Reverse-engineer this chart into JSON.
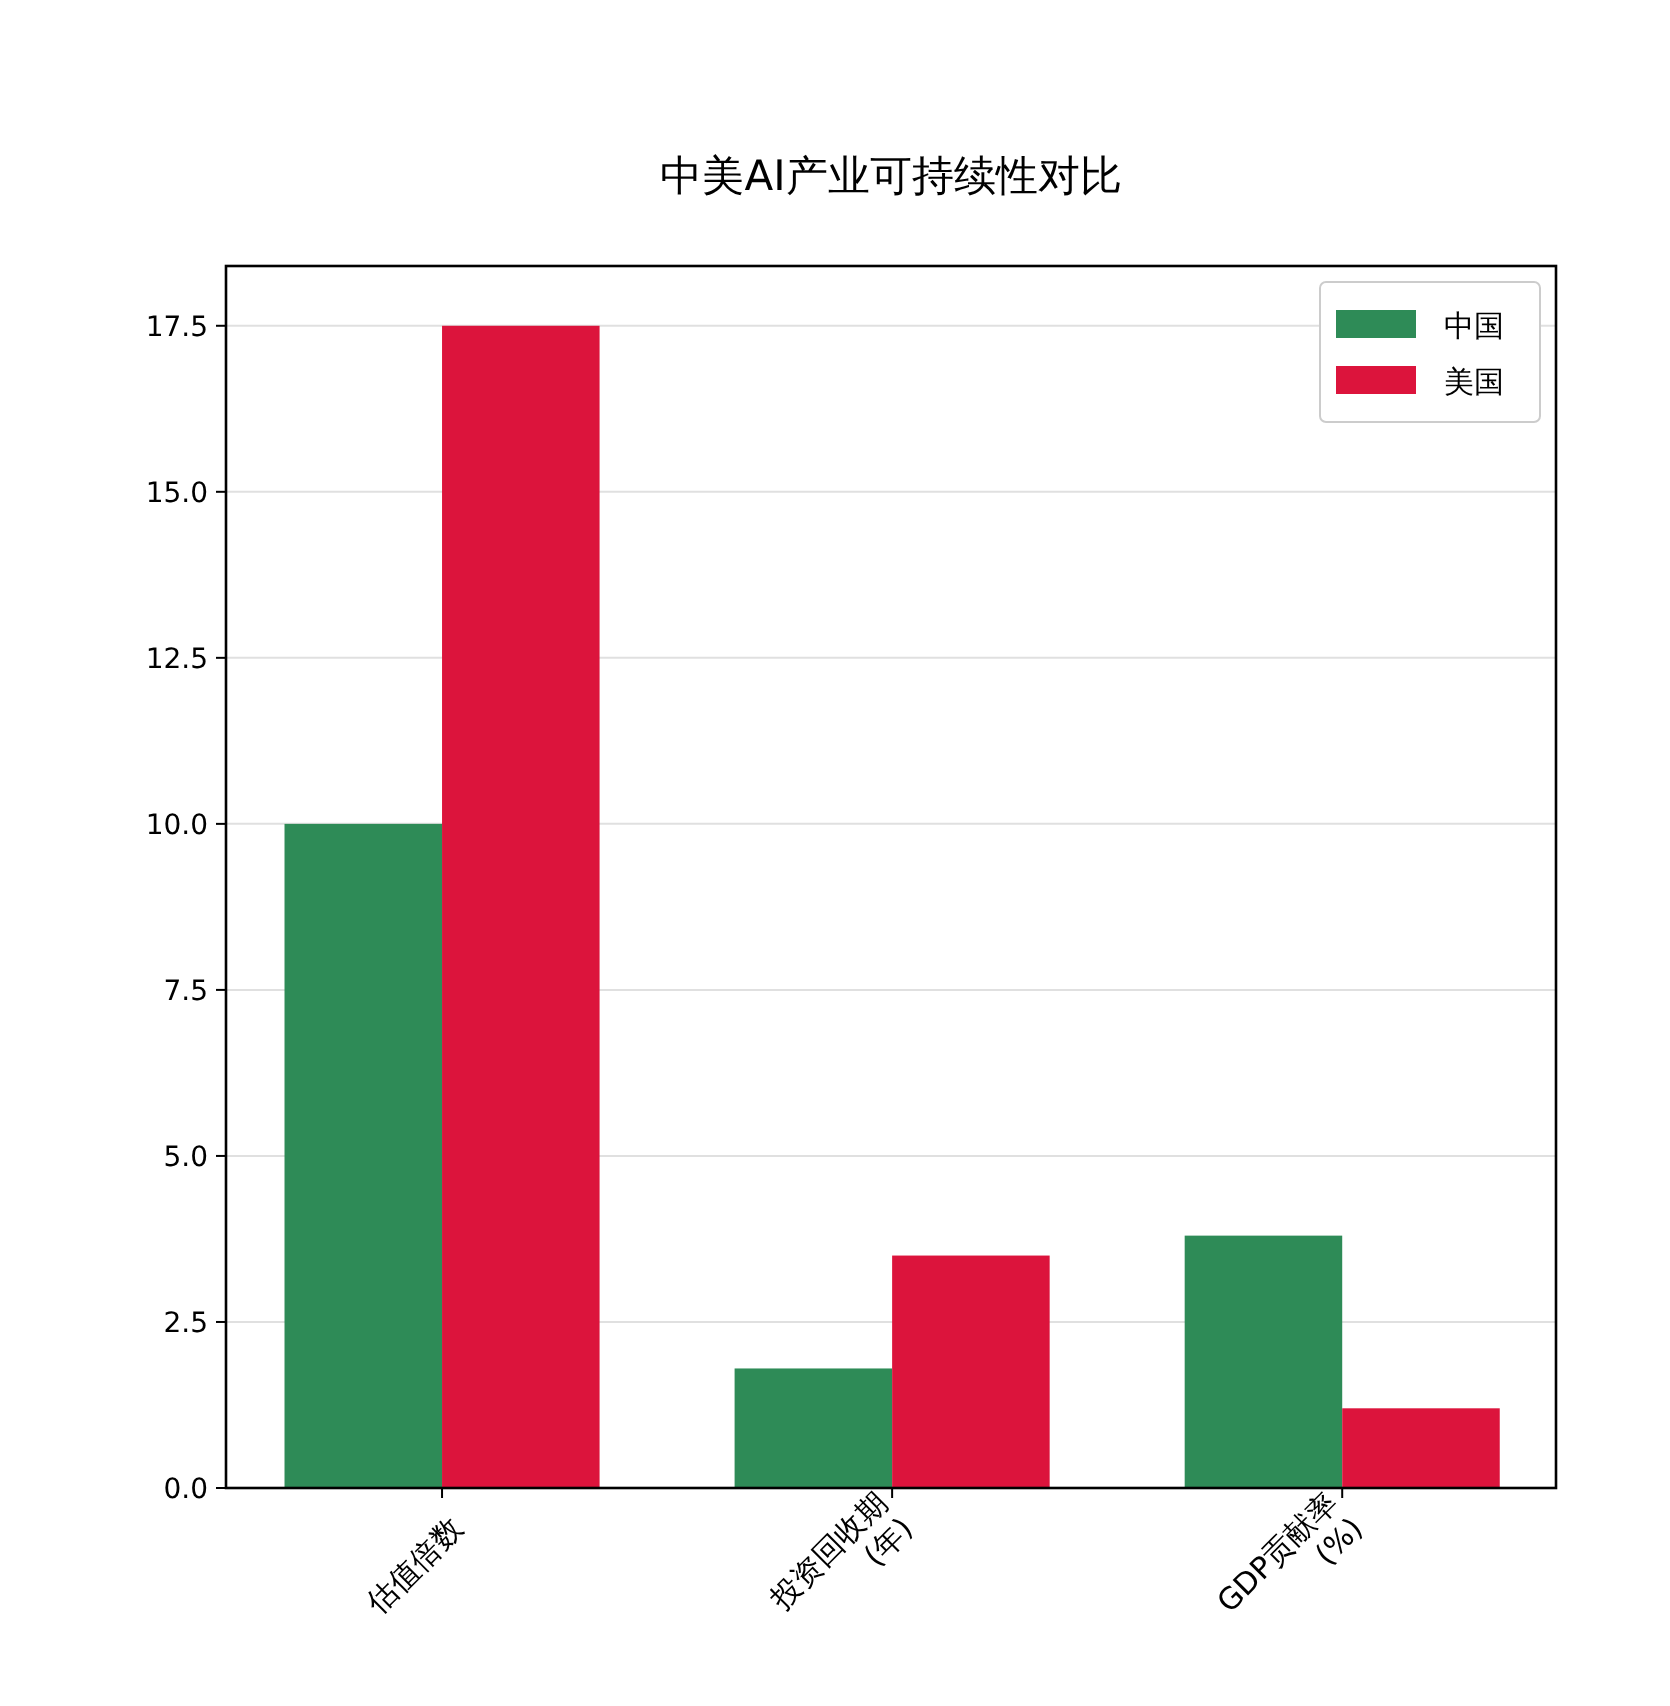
{
  "chart_data": {
    "type": "bar",
    "title": "中美AI产业可持续性对比",
    "categories": [
      "估值倍数",
      "投资回收期\n(年)",
      "GDP贡献率\n(%)"
    ],
    "series": [
      {
        "name": "中国",
        "color": "#2e8b57",
        "values": [
          10,
          1.8,
          3.8
        ]
      },
      {
        "name": "美国",
        "color": "#dc143c",
        "values": [
          17.5,
          3.5,
          1.2
        ]
      }
    ],
    "ylim": [
      0,
      18.4
    ],
    "yticks": [
      {
        "value": 0,
        "label": "0.0"
      },
      {
        "value": 2.5,
        "label": "2.5"
      },
      {
        "value": 5,
        "label": "5.0"
      },
      {
        "value": 7.5,
        "label": "7.5"
      },
      {
        "value": 10,
        "label": "10.0"
      },
      {
        "value": 12.5,
        "label": "12.5"
      },
      {
        "value": 15,
        "label": "15.0"
      },
      {
        "value": 17.5,
        "label": "17.5"
      }
    ],
    "grid": "y",
    "legend": "top right"
  }
}
